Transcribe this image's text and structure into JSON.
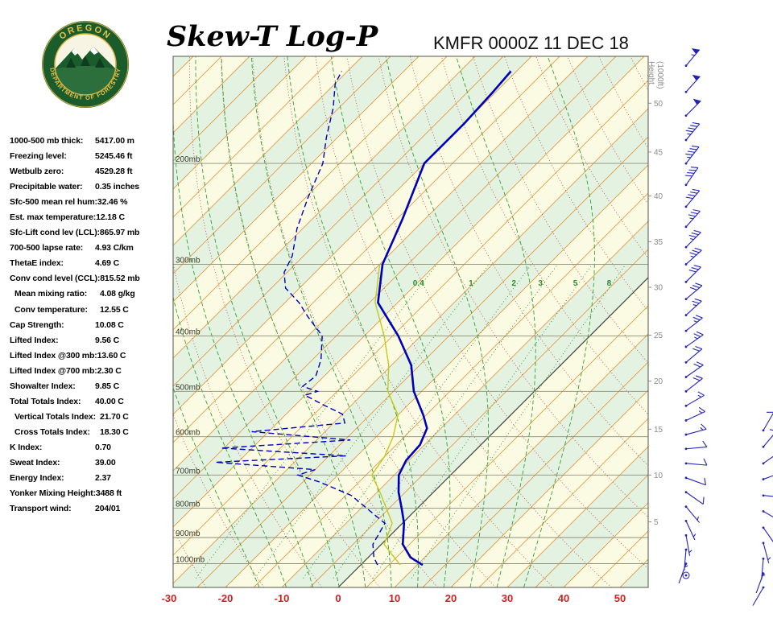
{
  "header": {
    "title": "Skew-T Log-P",
    "station_line": "KMFR 0000Z 11 DEC 18",
    "logo": {
      "top_text": "OREGON",
      "bottom_text": "DEPARTMENT OF FORESTRY"
    }
  },
  "indices_panel": {
    "rows": [
      {
        "label": "1000-500 mb thick:",
        "value": "5417.00 m",
        "indent": false
      },
      {
        "label": "Freezing level:",
        "value": "5245.46 ft",
        "indent": false
      },
      {
        "label": "Wetbulb zero:",
        "value": "4529.28 ft",
        "indent": false
      },
      {
        "label": "Precipitable water:",
        "value": "0.35 inches",
        "indent": false
      },
      {
        "label": "Sfc-500 mean rel hum:",
        "value": "32.46 %",
        "indent": false
      },
      {
        "label": "Est. max temperature:",
        "value": "12.18 C",
        "indent": false
      },
      {
        "label": "Sfc-Lift cond lev (LCL):",
        "value": "865.97 mb",
        "indent": false
      },
      {
        "label": "700-500 lapse rate:",
        "value": "4.93 C/km",
        "indent": false
      },
      {
        "label": "ThetaE index:",
        "value": "4.69 C",
        "indent": false
      },
      {
        "label": "Conv cond level (CCL):",
        "value": "815.52 mb",
        "indent": false
      },
      {
        "label": "Mean mixing ratio:",
        "value": "4.08 g/kg",
        "indent": true
      },
      {
        "label": "Conv temperature:",
        "value": "12.55 C",
        "indent": true
      },
      {
        "label": "Cap Strength:",
        "value": "10.08 C",
        "indent": false
      },
      {
        "label": "Lifted Index:",
        "value": "9.56 C",
        "indent": false
      },
      {
        "label": "Lifted Index @300 mb:",
        "value": "13.60 C",
        "indent": false
      },
      {
        "label": "Lifted Index @700 mb:",
        "value": "2.30 C",
        "indent": false
      },
      {
        "label": "Showalter Index:",
        "value": "9.85 C",
        "indent": false
      },
      {
        "label": "Total Totals Index:",
        "value": "40.00 C",
        "indent": false
      },
      {
        "label": "Vertical Totals Index:",
        "value": "21.70 C",
        "indent": true
      },
      {
        "label": "Cross Totals Index:",
        "value": "18.30 C",
        "indent": true
      },
      {
        "label": "K Index:",
        "value": "0.70",
        "indent": false
      },
      {
        "label": "Sweat Index:",
        "value": "39.00",
        "indent": false
      },
      {
        "label": "Energy Index:",
        "value": "2.37",
        "indent": false
      },
      {
        "label": "Yonker Mixing Height:",
        "value": "3488 ft",
        "indent": false
      },
      {
        "label": "Transport wind:",
        "value": "204/01",
        "indent": false
      }
    ]
  },
  "chart_data": {
    "type": "skewt-log-p",
    "title": "Skew-T Log-P",
    "station": "KMFR 0000Z 11 DEC 18",
    "pressure_range": [
      130,
      1100
    ],
    "pressure_levels": [
      200,
      300,
      400,
      500,
      600,
      700,
      800,
      900,
      1000
    ],
    "pressure_unit": "mb",
    "temp_axis_ticks_c": [
      -30,
      -20,
      -10,
      0,
      10,
      20,
      30,
      40,
      50
    ],
    "isotherm_step_c": 5,
    "dry_adiabat_step_k": 10,
    "moist_adiabats_thetaw_c": [
      -20,
      -15,
      -10,
      -5,
      0,
      5,
      10,
      15,
      20,
      25,
      30
    ],
    "mixing_ratio_g_kg": [
      0.4,
      1,
      2,
      3,
      5,
      8
    ],
    "height_axis": {
      "title": "Height (1000ft)",
      "marks": [
        [
          5,
          845
        ],
        [
          10,
          700
        ],
        [
          15,
          582
        ],
        [
          20,
          480
        ],
        [
          25,
          399
        ],
        [
          30,
          329
        ],
        [
          35,
          274
        ],
        [
          40,
          228
        ],
        [
          45,
          191
        ],
        [
          50,
          157
        ]
      ]
    },
    "temperature_profile": [
      [
        1005,
        11
      ],
      [
        975,
        7.5
      ],
      [
        925,
        3.8
      ],
      [
        850,
        0.3
      ],
      [
        800,
        -2.8
      ],
      [
        750,
        -6.2
      ],
      [
        700,
        -9.2
      ],
      [
        660,
        -10.5
      ],
      [
        620,
        -10.8
      ],
      [
        580,
        -12.5
      ],
      [
        550,
        -15.5
      ],
      [
        500,
        -21.4
      ],
      [
        450,
        -26.5
      ],
      [
        400,
        -34
      ],
      [
        350,
        -43.5
      ],
      [
        300,
        -49.5
      ],
      [
        250,
        -54
      ],
      [
        200,
        -60
      ],
      [
        170,
        -60
      ],
      [
        150,
        -60.5
      ],
      [
        138,
        -61
      ]
    ],
    "dewpoint_profile": [
      [
        1005,
        3
      ],
      [
        975,
        1
      ],
      [
        925,
        -1.5
      ],
      [
        850,
        -3.1
      ],
      [
        800,
        -9
      ],
      [
        760,
        -14
      ],
      [
        720,
        -22
      ],
      [
        700,
        -27.1
      ],
      [
        685,
        -25
      ],
      [
        665,
        -44
      ],
      [
        648,
        -22
      ],
      [
        628,
        -45.5
      ],
      [
        608,
        -24
      ],
      [
        588,
        -43
      ],
      [
        568,
        -28
      ],
      [
        548,
        -30
      ],
      [
        528,
        -35
      ],
      [
        508,
        -40
      ],
      [
        500,
        -38.5
      ],
      [
        490,
        -42
      ],
      [
        470,
        -41.5
      ],
      [
        440,
        -43.5
      ],
      [
        400,
        -47.5
      ],
      [
        370,
        -53.5
      ],
      [
        350,
        -57.5
      ],
      [
        330,
        -62.5
      ],
      [
        310,
        -65.5
      ],
      [
        290,
        -67
      ],
      [
        260,
        -71
      ],
      [
        230,
        -74.5
      ],
      [
        200,
        -78
      ],
      [
        180,
        -82
      ],
      [
        160,
        -86
      ],
      [
        145,
        -90
      ],
      [
        138,
        -91
      ]
    ],
    "wetbulb_profile": [
      [
        1005,
        7
      ],
      [
        925,
        0.5
      ],
      [
        850,
        -1.8
      ],
      [
        750,
        -9.5
      ],
      [
        700,
        -14
      ],
      [
        650,
        -15
      ],
      [
        600,
        -17
      ],
      [
        550,
        -20
      ],
      [
        500,
        -26
      ],
      [
        450,
        -30.5
      ],
      [
        400,
        -36.5
      ],
      [
        350,
        -44
      ],
      [
        300,
        -50
      ]
    ],
    "winds": [
      {
        "p": 135,
        "dir": 40,
        "spd": 55
      },
      {
        "p": 150,
        "dir": 42,
        "spd": 50
      },
      {
        "p": 165,
        "dir": 45,
        "spd": 50
      },
      {
        "p": 182,
        "dir": 40,
        "spd": 45
      },
      {
        "p": 200,
        "dir": 38,
        "spd": 45
      },
      {
        "p": 218,
        "dir": 35,
        "spd": 40
      },
      {
        "p": 238,
        "dir": 40,
        "spd": 40
      },
      {
        "p": 258,
        "dir": 42,
        "spd": 35
      },
      {
        "p": 280,
        "dir": 45,
        "spd": 35
      },
      {
        "p": 300,
        "dir": 48,
        "spd": 35
      },
      {
        "p": 322,
        "dir": 45,
        "spd": 30
      },
      {
        "p": 345,
        "dir": 50,
        "spd": 30
      },
      {
        "p": 368,
        "dir": 48,
        "spd": 25
      },
      {
        "p": 392,
        "dir": 52,
        "spd": 25
      },
      {
        "p": 418,
        "dir": 55,
        "spd": 25
      },
      {
        "p": 445,
        "dir": 50,
        "spd": 20
      },
      {
        "p": 472,
        "dir": 55,
        "spd": 20
      },
      {
        "p": 500,
        "dir": 52,
        "spd": 20
      },
      {
        "p": 530,
        "dir": 60,
        "spd": 15
      },
      {
        "p": 562,
        "dir": 65,
        "spd": 15
      },
      {
        "p": 595,
        "dir": 75,
        "spd": 15
      },
      {
        "p": 630,
        "dir": 85,
        "spd": 10
      },
      {
        "p": 668,
        "dir": 95,
        "spd": 10
      },
      {
        "p": 708,
        "dir": 110,
        "spd": 10
      },
      {
        "p": 750,
        "dir": 125,
        "spd": 8
      },
      {
        "p": 795,
        "dir": 140,
        "spd": 5
      },
      {
        "p": 842,
        "dir": 155,
        "spd": 5
      },
      {
        "p": 892,
        "dir": 170,
        "spd": 5
      },
      {
        "p": 945,
        "dir": 185,
        "spd": 3
      },
      {
        "p": 1000,
        "dir": 200,
        "spd": 2
      },
      {
        "p": 1048,
        "dir": 204,
        "spd": 1
      }
    ],
    "winds_secondary": [
      {
        "p": 585,
        "dir": 30,
        "spd": 10
      },
      {
        "p": 625,
        "dir": 40,
        "spd": 10
      },
      {
        "p": 668,
        "dir": 55,
        "spd": 8
      },
      {
        "p": 712,
        "dir": 70,
        "spd": 5
      },
      {
        "p": 760,
        "dir": 95,
        "spd": 5
      },
      {
        "p": 810,
        "dir": 120,
        "spd": 5
      },
      {
        "p": 865,
        "dir": 145,
        "spd": 5
      },
      {
        "p": 920,
        "dir": 165,
        "spd": 3
      },
      {
        "p": 980,
        "dir": 185,
        "spd": 3
      },
      {
        "p": 1040,
        "dir": 200,
        "spd": 2
      },
      {
        "p": 1100,
        "dir": 210,
        "spd": 2
      }
    ],
    "colors": {
      "temp_line": "#0000bb",
      "dewpoint_line": "#0000bb",
      "wetbulb_line": "#c8c818",
      "isotherm": "#e09a45",
      "zero_isotherm": "#454540",
      "dry_adiabat": "#bb4433",
      "moist_adiabat": "#33a033",
      "mixing_ratio": "#2d8f2d",
      "pressure_line": "#8f8f74",
      "band_cream": "#fbfbe4",
      "band_green": "#e4f2e2",
      "axis_label": "#cc2222",
      "height_label": "#8a8a8a",
      "wind_barb": "#2222bb",
      "pressure_label": "#3a3a2a",
      "border": "#55554a"
    }
  }
}
